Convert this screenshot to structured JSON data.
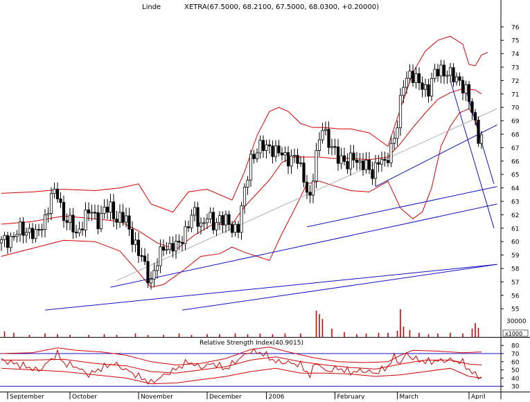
{
  "header": {
    "symbol": "Linde",
    "quote": "XETRA(67.5000, 68.2100, 67.5000, 68.0300, +0.20000)"
  },
  "rsi_title": "Relative Strength Index(40.9015)",
  "volume_unit": "x1000",
  "volume_tick": "30000",
  "price_ticks": [
    76,
    75,
    74,
    73,
    72,
    71,
    70,
    69,
    68,
    67,
    66,
    65,
    64,
    63,
    62,
    61,
    60,
    59,
    58,
    57,
    56,
    55
  ],
  "rsi_ticks": [
    80,
    70,
    60,
    50,
    40,
    30
  ],
  "month_labels": [
    {
      "label": "September",
      "day": 2
    },
    {
      "label": "October",
      "day": 22
    },
    {
      "label": "November",
      "day": 44
    },
    {
      "label": "December",
      "day": 66
    },
    {
      "label": "2006",
      "day": 85
    },
    {
      "label": "February",
      "day": 107
    },
    {
      "label": "March",
      "day": 127
    },
    {
      "label": "April",
      "day": 150
    }
  ],
  "colors": {
    "candle": "#000000",
    "bollinger": "#d40000",
    "trendline": "#1010c8",
    "regression": "#b0b0b0",
    "rsi": "#cc0000",
    "volume": "#cc0000",
    "grid": "#000000"
  },
  "chart_data": [
    {
      "type": "candlestick",
      "title": "Linde",
      "subtitle": "XETRA(67.5000, 68.2100, 67.5000, 68.0300, +0.20000)",
      "x_range_days": [
        0,
        159
      ],
      "ylim": [
        54.5,
        77
      ],
      "close_path": [
        [
          0,
          59.9
        ],
        [
          3,
          60.3
        ],
        [
          6,
          60.8
        ],
        [
          9,
          60.9
        ],
        [
          11,
          60.3
        ],
        [
          14,
          61.8
        ],
        [
          16,
          63.3
        ],
        [
          18,
          63.6
        ],
        [
          20,
          61.9
        ],
        [
          22,
          61.3
        ],
        [
          24,
          60.6
        ],
        [
          27,
          61.8
        ],
        [
          29,
          62.3
        ],
        [
          31,
          61.6
        ],
        [
          33,
          62.2
        ],
        [
          35,
          62.6
        ],
        [
          37,
          61.7
        ],
        [
          40,
          61.6
        ],
        [
          42,
          60.4
        ],
        [
          44,
          59.0
        ],
        [
          45,
          58.8
        ],
        [
          47,
          57.6
        ],
        [
          48,
          57.1
        ],
        [
          50,
          58.3
        ],
        [
          52,
          59.8
        ],
        [
          54,
          59.6
        ],
        [
          56,
          59.5
        ],
        [
          58,
          60.4
        ],
        [
          60,
          61.3
        ],
        [
          62,
          62.1
        ],
        [
          64,
          61.3
        ],
        [
          66,
          61.8
        ],
        [
          68,
          61.2
        ],
        [
          70,
          61.9
        ],
        [
          72,
          61.4
        ],
        [
          74,
          61.0
        ],
        [
          76,
          61.2
        ],
        [
          78,
          63.6
        ],
        [
          80,
          66.3
        ],
        [
          82,
          66.8
        ],
        [
          84,
          67.0
        ],
        [
          86,
          67.2
        ],
        [
          88,
          66.6
        ],
        [
          90,
          66.5
        ],
        [
          92,
          66.3
        ],
        [
          95,
          66.0
        ],
        [
          97,
          64.9
        ],
        [
          99,
          63.0
        ],
        [
          101,
          66.4
        ],
        [
          103,
          68.9
        ],
        [
          105,
          67.1
        ],
        [
          107,
          66.7
        ],
        [
          109,
          66.3
        ],
        [
          111,
          65.5
        ],
        [
          113,
          66.5
        ],
        [
          115,
          65.8
        ],
        [
          117,
          65.5
        ],
        [
          119,
          65.2
        ],
        [
          121,
          66.1
        ],
        [
          123,
          65.6
        ],
        [
          125,
          67.2
        ],
        [
          127,
          68.6
        ],
        [
          129,
          71.8
        ],
        [
          131,
          72.7
        ],
        [
          133,
          71.9
        ],
        [
          135,
          71.6
        ],
        [
          137,
          71.4
        ],
        [
          139,
          72.4
        ],
        [
          141,
          72.9
        ],
        [
          143,
          72.6
        ],
        [
          145,
          72.1
        ],
        [
          147,
          72.1
        ],
        [
          149,
          71.2
        ],
        [
          151,
          69.6
        ],
        [
          153,
          68.0
        ],
        [
          154,
          67.8
        ]
      ],
      "bollinger_upper": [
        [
          0,
          63.6
        ],
        [
          10,
          63.7
        ],
        [
          20,
          63.9
        ],
        [
          30,
          63.8
        ],
        [
          38,
          64.0
        ],
        [
          44,
          64.3
        ],
        [
          48,
          62.8
        ],
        [
          55,
          62.2
        ],
        [
          60,
          63.7
        ],
        [
          66,
          63.9
        ],
        [
          74,
          63.1
        ],
        [
          78,
          65.2
        ],
        [
          82,
          67.9
        ],
        [
          86,
          69.7
        ],
        [
          89,
          70.0
        ],
        [
          92,
          69.7
        ],
        [
          96,
          68.8
        ],
        [
          100,
          68.5
        ],
        [
          104,
          68.5
        ],
        [
          108,
          68.4
        ],
        [
          112,
          68.4
        ],
        [
          118,
          68.1
        ],
        [
          124,
          67.1
        ],
        [
          128,
          69.9
        ],
        [
          132,
          72.6
        ],
        [
          136,
          74.2
        ],
        [
          140,
          75.0
        ],
        [
          144,
          75.3
        ],
        [
          148,
          74.7
        ],
        [
          150,
          73.2
        ],
        [
          152,
          73.1
        ],
        [
          154,
          73.9
        ],
        [
          156,
          74.1
        ]
      ],
      "bollinger_middle": [
        [
          0,
          61.3
        ],
        [
          10,
          61.5
        ],
        [
          20,
          61.9
        ],
        [
          30,
          61.7
        ],
        [
          38,
          61.5
        ],
        [
          44,
          60.8
        ],
        [
          50,
          59.9
        ],
        [
          56,
          59.4
        ],
        [
          62,
          60.5
        ],
        [
          68,
          61.3
        ],
        [
          74,
          61.3
        ],
        [
          78,
          62.6
        ],
        [
          82,
          63.6
        ],
        [
          86,
          64.6
        ],
        [
          90,
          65.9
        ],
        [
          94,
          66.3
        ],
        [
          98,
          66.3
        ],
        [
          102,
          66.3
        ],
        [
          106,
          66.2
        ],
        [
          112,
          66.2
        ],
        [
          118,
          66.1
        ],
        [
          124,
          66.3
        ],
        [
          128,
          67.3
        ],
        [
          132,
          68.5
        ],
        [
          136,
          69.6
        ],
        [
          140,
          70.6
        ],
        [
          144,
          71.1
        ],
        [
          148,
          71.4
        ],
        [
          152,
          71.3
        ],
        [
          154,
          71.0
        ]
      ],
      "bollinger_lower": [
        [
          0,
          58.9
        ],
        [
          10,
          59.5
        ],
        [
          20,
          60.1
        ],
        [
          30,
          60.0
        ],
        [
          38,
          59.3
        ],
        [
          44,
          57.7
        ],
        [
          48,
          56.6
        ],
        [
          52,
          56.8
        ],
        [
          58,
          57.8
        ],
        [
          64,
          58.9
        ],
        [
          70,
          59.1
        ],
        [
          74,
          59.6
        ],
        [
          78,
          59.2
        ],
        [
          82,
          58.9
        ],
        [
          86,
          58.6
        ],
        [
          90,
          60.6
        ],
        [
          94,
          62.4
        ],
        [
          98,
          64.3
        ],
        [
          102,
          64.5
        ],
        [
          106,
          64.2
        ],
        [
          112,
          63.8
        ],
        [
          118,
          63.7
        ],
        [
          124,
          64.5
        ],
        [
          128,
          62.5
        ],
        [
          132,
          61.7
        ],
        [
          135,
          62.2
        ],
        [
          138,
          64.0
        ],
        [
          141,
          67.1
        ],
        [
          144,
          68.6
        ],
        [
          147,
          69.6
        ],
        [
          150,
          69.9
        ],
        [
          152,
          69.2
        ],
        [
          154,
          67.4
        ]
      ],
      "trendlines": [
        {
          "kind": "support",
          "points": [
            [
              14,
              54.9
            ],
            [
              159,
              58.3
            ]
          ]
        },
        {
          "kind": "support",
          "points": [
            [
              58,
              54.9
            ],
            [
              159,
              58.3
            ]
          ]
        },
        {
          "kind": "support",
          "points": [
            [
              35,
              56.6
            ],
            [
              159,
              62.8
            ]
          ]
        },
        {
          "kind": "support",
          "points": [
            [
              98,
              61.1
            ],
            [
              159,
              64.1
            ]
          ]
        },
        {
          "kind": "support",
          "points": [
            [
              120,
              64.1
            ],
            [
              159,
              68.7
            ]
          ]
        },
        {
          "kind": "resistance",
          "points": [
            [
              144,
              72.0
            ],
            [
              158,
              61.0
            ]
          ]
        },
        {
          "kind": "resistance",
          "points": [
            [
              149,
              71.3
            ],
            [
              158,
              64.3
            ]
          ]
        },
        {
          "kind": "regression",
          "points": [
            [
              37,
              57.1
            ],
            [
              159,
              69.9
            ]
          ]
        }
      ]
    },
    {
      "type": "bar",
      "title": "Volume",
      "unit": "x1000",
      "ylim": [
        0,
        40000
      ],
      "values_by_day": [
        [
          1,
          8000
        ],
        [
          4,
          6000
        ],
        [
          9,
          3000
        ],
        [
          14,
          5000
        ],
        [
          18,
          4000
        ],
        [
          22,
          3000
        ],
        [
          28,
          3000
        ],
        [
          33,
          4000
        ],
        [
          37,
          3000
        ],
        [
          43,
          5000
        ],
        [
          47,
          3000
        ],
        [
          52,
          3000
        ],
        [
          57,
          5000
        ],
        [
          61,
          3000
        ],
        [
          66,
          4000
        ],
        [
          70,
          4000
        ],
        [
          75,
          5000
        ],
        [
          79,
          4000
        ],
        [
          83,
          5000
        ],
        [
          87,
          4000
        ],
        [
          91,
          5000
        ],
        [
          96,
          5000
        ],
        [
          101,
          38000
        ],
        [
          102,
          33000
        ],
        [
          103,
          26000
        ],
        [
          106,
          12000
        ],
        [
          110,
          7000
        ],
        [
          114,
          4000
        ],
        [
          117,
          5000
        ],
        [
          121,
          6000
        ],
        [
          124,
          6000
        ],
        [
          127,
          9000
        ],
        [
          128,
          40000
        ],
        [
          129,
          15000
        ],
        [
          131,
          10000
        ],
        [
          134,
          6000
        ],
        [
          137,
          4000
        ],
        [
          140,
          5000
        ],
        [
          144,
          6000
        ],
        [
          148,
          5000
        ],
        [
          151,
          12000
        ],
        [
          152,
          20000
        ],
        [
          153,
          13000
        ]
      ]
    },
    {
      "type": "line",
      "title": "Relative Strength Index(40.9015)",
      "ylim": [
        25,
        85
      ],
      "levels": [
        70,
        30
      ],
      "rsi_path": [
        [
          0,
          62
        ],
        [
          4,
          58
        ],
        [
          8,
          54
        ],
        [
          12,
          49
        ],
        [
          16,
          63
        ],
        [
          18,
          70
        ],
        [
          20,
          58
        ],
        [
          24,
          54
        ],
        [
          28,
          44
        ],
        [
          32,
          52
        ],
        [
          36,
          58
        ],
        [
          40,
          50
        ],
        [
          44,
          42
        ],
        [
          48,
          34
        ],
        [
          52,
          43
        ],
        [
          56,
          51
        ],
        [
          60,
          60
        ],
        [
          64,
          53
        ],
        [
          68,
          58
        ],
        [
          72,
          51
        ],
        [
          76,
          63
        ],
        [
          80,
          73
        ],
        [
          84,
          70
        ],
        [
          88,
          60
        ],
        [
          92,
          59
        ],
        [
          96,
          56
        ],
        [
          99,
          43
        ],
        [
          101,
          60
        ],
        [
          104,
          48
        ],
        [
          108,
          52
        ],
        [
          112,
          47
        ],
        [
          116,
          49
        ],
        [
          120,
          46
        ],
        [
          124,
          54
        ],
        [
          126,
          66
        ],
        [
          128,
          58
        ],
        [
          130,
          70
        ],
        [
          132,
          64
        ],
        [
          136,
          60
        ],
        [
          140,
          61
        ],
        [
          144,
          62
        ],
        [
          148,
          59
        ],
        [
          150,
          50
        ],
        [
          152,
          44
        ],
        [
          154,
          41
        ]
      ],
      "band_upper_path": [
        [
          0,
          70
        ],
        [
          10,
          71
        ],
        [
          18,
          77
        ],
        [
          24,
          74
        ],
        [
          32,
          72
        ],
        [
          40,
          68
        ],
        [
          48,
          60
        ],
        [
          56,
          56
        ],
        [
          64,
          58
        ],
        [
          72,
          64
        ],
        [
          80,
          75
        ],
        [
          86,
          78
        ],
        [
          92,
          72
        ],
        [
          100,
          65
        ],
        [
          108,
          60
        ],
        [
          116,
          59
        ],
        [
          124,
          60
        ],
        [
          128,
          68
        ],
        [
          132,
          74
        ],
        [
          140,
          73
        ],
        [
          148,
          71
        ],
        [
          154,
          72
        ]
      ],
      "band_lower_path": [
        [
          0,
          52
        ],
        [
          10,
          50
        ],
        [
          20,
          48
        ],
        [
          30,
          44
        ],
        [
          40,
          40
        ],
        [
          48,
          33
        ],
        [
          56,
          34
        ],
        [
          64,
          38
        ],
        [
          72,
          42
        ],
        [
          80,
          48
        ],
        [
          88,
          52
        ],
        [
          96,
          46
        ],
        [
          104,
          46
        ],
        [
          112,
          45
        ],
        [
          120,
          42
        ],
        [
          128,
          44
        ],
        [
          136,
          48
        ],
        [
          144,
          52
        ],
        [
          150,
          42
        ],
        [
          154,
          40
        ]
      ],
      "band_middle_path": [
        [
          0,
          62
        ],
        [
          10,
          62
        ],
        [
          20,
          63
        ],
        [
          30,
          58
        ],
        [
          40,
          55
        ],
        [
          48,
          48
        ],
        [
          56,
          46
        ],
        [
          64,
          50
        ],
        [
          72,
          54
        ],
        [
          80,
          62
        ],
        [
          88,
          66
        ],
        [
          96,
          60
        ],
        [
          104,
          56
        ],
        [
          112,
          53
        ],
        [
          120,
          51
        ],
        [
          128,
          57
        ],
        [
          136,
          62
        ],
        [
          144,
          62
        ],
        [
          150,
          57
        ],
        [
          154,
          56
        ]
      ]
    }
  ]
}
